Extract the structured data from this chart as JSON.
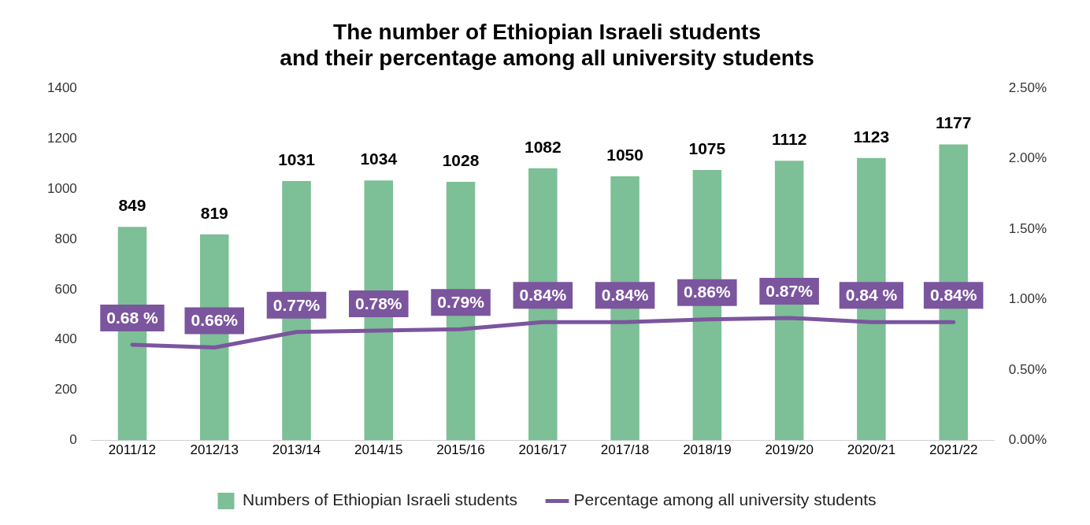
{
  "chart_data": {
    "type": "bar",
    "title": "The number of Ethiopian Israeli students\nand their percentage among all university students",
    "categories": [
      "2011/12",
      "2012/13",
      "2013/14",
      "2014/15",
      "2015/16",
      "2016/17",
      "2017/18",
      "2018/19",
      "2019/20",
      "2020/21",
      "2021/22"
    ],
    "series": [
      {
        "name": "Numbers of Ethiopian Israeli students",
        "color": "#7dbf96",
        "values": [
          849,
          819,
          1031,
          1034,
          1028,
          1082,
          1050,
          1075,
          1112,
          1123,
          1177
        ],
        "value_labels": [
          "849",
          "819",
          "1031",
          "1034",
          "1028",
          "1082",
          "1050",
          "1075",
          "1112",
          "1123",
          "1177"
        ]
      },
      {
        "name": "Percentage among all university students",
        "type": "line",
        "axis": "y2",
        "color": "#7b559e",
        "values": [
          0.68,
          0.66,
          0.77,
          0.78,
          0.79,
          0.84,
          0.84,
          0.86,
          0.87,
          0.84,
          0.84
        ],
        "value_labels": [
          "0.68 %",
          "0.66%",
          "0.77%",
          "0.78%",
          "0.79%",
          "0.84%",
          "0.84%",
          "0.86%",
          "0.87%",
          "0.84 %",
          "0.84%"
        ]
      }
    ],
    "ylim": [
      0,
      1400
    ],
    "yticks": [
      0,
      200,
      400,
      600,
      800,
      1000,
      1200,
      1400
    ],
    "y2lim": [
      0,
      2.5
    ],
    "y2ticks": [
      {
        "value": 0,
        "label": "0.00%"
      },
      {
        "value": 0.5,
        "label": "0.50%"
      },
      {
        "value": 1,
        "label": "1.00%"
      },
      {
        "value": 1.5,
        "label": "1.50%"
      },
      {
        "value": 2,
        "label": "2.00%"
      },
      {
        "value": 2.5,
        "label": "2.50%"
      }
    ],
    "grid": false,
    "legend": "bottom",
    "marker": "none",
    "line_style": "solid"
  }
}
